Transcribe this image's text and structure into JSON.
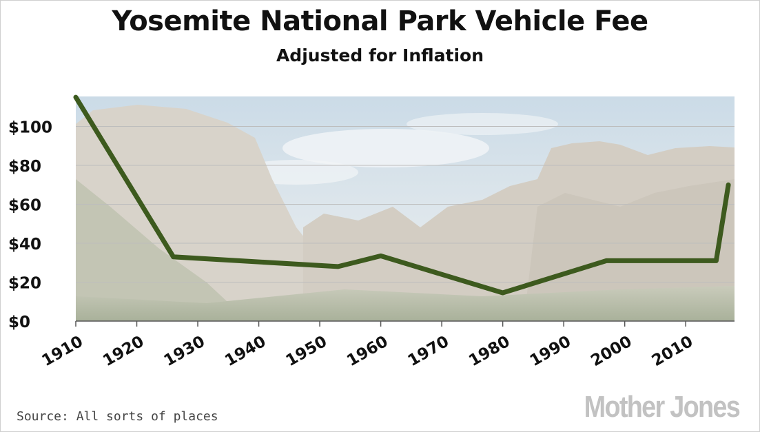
{
  "chart_data": {
    "type": "line",
    "title": "Yosemite National Park Vehicle Fee",
    "subtitle": "Adjusted for Inflation",
    "xlabel": "",
    "ylabel": "",
    "xlim": [
      1910,
      2018
    ],
    "ylim": [
      0,
      115
    ],
    "x_ticks": [
      1910,
      1920,
      1930,
      1940,
      1950,
      1960,
      1970,
      1980,
      1990,
      2000,
      2010
    ],
    "x_tick_labels": [
      "1910",
      "1920",
      "1930",
      "1940",
      "1950",
      "1960",
      "1970",
      "1980",
      "1990",
      "2000",
      "2010"
    ],
    "y_ticks": [
      0,
      20,
      40,
      60,
      80,
      100
    ],
    "y_tick_labels": [
      "$0",
      "$20",
      "$40",
      "$60",
      "$80",
      "$100"
    ],
    "grid": true,
    "series": [
      {
        "color": "#3d5a1e",
        "x": [
          1910,
          1926,
          1953,
          1960,
          1980,
          1997,
          2015,
          2017
        ],
        "y": [
          115,
          33,
          28,
          33.5,
          14.5,
          31,
          31,
          70
        ]
      }
    ]
  },
  "footer": {
    "source": "Source: All sorts of places",
    "brand": "Mother Jones"
  },
  "colors": {
    "line": "#3d5a1e",
    "grid": "#bdbdbd",
    "sky": "#a9c6dc",
    "rock": "#cfc8bd"
  }
}
